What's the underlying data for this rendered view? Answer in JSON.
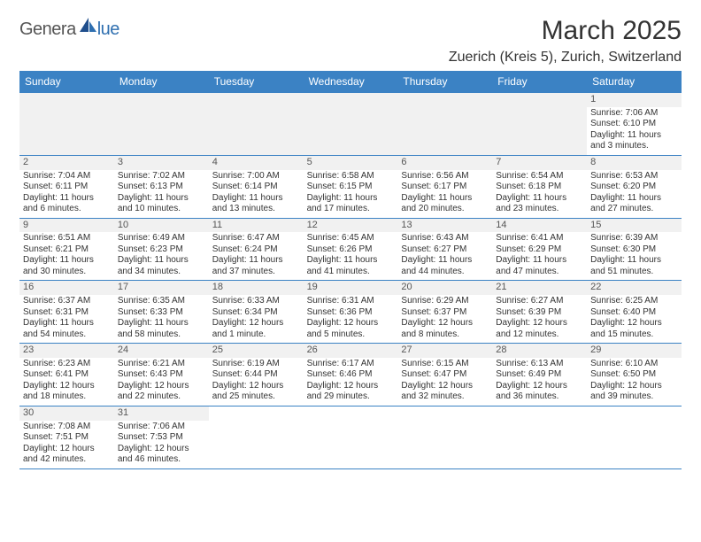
{
  "logo": {
    "text1": "Genera",
    "text2": "lue"
  },
  "header": {
    "title": "March 2025",
    "location": "Zuerich (Kreis 5), Zurich, Switzerland"
  },
  "calendar": {
    "headers": [
      "Sunday",
      "Monday",
      "Tuesday",
      "Wednesday",
      "Thursday",
      "Friday",
      "Saturday"
    ],
    "colors": {
      "header_bg": "#3b82c4",
      "header_text": "#ffffff",
      "border": "#3b82c4",
      "empty_bg": "#f1f1f1",
      "daynum_bg": "#f1f1f1",
      "text": "#333333"
    },
    "rows": [
      [
        {
          "empty": true
        },
        {
          "empty": true
        },
        {
          "empty": true
        },
        {
          "empty": true
        },
        {
          "empty": true
        },
        {
          "empty": true
        },
        {
          "day": "1",
          "sunrise": "Sunrise: 7:06 AM",
          "sunset": "Sunset: 6:10 PM",
          "daylight1": "Daylight: 11 hours",
          "daylight2": "and 3 minutes."
        }
      ],
      [
        {
          "day": "2",
          "sunrise": "Sunrise: 7:04 AM",
          "sunset": "Sunset: 6:11 PM",
          "daylight1": "Daylight: 11 hours",
          "daylight2": "and 6 minutes."
        },
        {
          "day": "3",
          "sunrise": "Sunrise: 7:02 AM",
          "sunset": "Sunset: 6:13 PM",
          "daylight1": "Daylight: 11 hours",
          "daylight2": "and 10 minutes."
        },
        {
          "day": "4",
          "sunrise": "Sunrise: 7:00 AM",
          "sunset": "Sunset: 6:14 PM",
          "daylight1": "Daylight: 11 hours",
          "daylight2": "and 13 minutes."
        },
        {
          "day": "5",
          "sunrise": "Sunrise: 6:58 AM",
          "sunset": "Sunset: 6:15 PM",
          "daylight1": "Daylight: 11 hours",
          "daylight2": "and 17 minutes."
        },
        {
          "day": "6",
          "sunrise": "Sunrise: 6:56 AM",
          "sunset": "Sunset: 6:17 PM",
          "daylight1": "Daylight: 11 hours",
          "daylight2": "and 20 minutes."
        },
        {
          "day": "7",
          "sunrise": "Sunrise: 6:54 AM",
          "sunset": "Sunset: 6:18 PM",
          "daylight1": "Daylight: 11 hours",
          "daylight2": "and 23 minutes."
        },
        {
          "day": "8",
          "sunrise": "Sunrise: 6:53 AM",
          "sunset": "Sunset: 6:20 PM",
          "daylight1": "Daylight: 11 hours",
          "daylight2": "and 27 minutes."
        }
      ],
      [
        {
          "day": "9",
          "sunrise": "Sunrise: 6:51 AM",
          "sunset": "Sunset: 6:21 PM",
          "daylight1": "Daylight: 11 hours",
          "daylight2": "and 30 minutes."
        },
        {
          "day": "10",
          "sunrise": "Sunrise: 6:49 AM",
          "sunset": "Sunset: 6:23 PM",
          "daylight1": "Daylight: 11 hours",
          "daylight2": "and 34 minutes."
        },
        {
          "day": "11",
          "sunrise": "Sunrise: 6:47 AM",
          "sunset": "Sunset: 6:24 PM",
          "daylight1": "Daylight: 11 hours",
          "daylight2": "and 37 minutes."
        },
        {
          "day": "12",
          "sunrise": "Sunrise: 6:45 AM",
          "sunset": "Sunset: 6:26 PM",
          "daylight1": "Daylight: 11 hours",
          "daylight2": "and 41 minutes."
        },
        {
          "day": "13",
          "sunrise": "Sunrise: 6:43 AM",
          "sunset": "Sunset: 6:27 PM",
          "daylight1": "Daylight: 11 hours",
          "daylight2": "and 44 minutes."
        },
        {
          "day": "14",
          "sunrise": "Sunrise: 6:41 AM",
          "sunset": "Sunset: 6:29 PM",
          "daylight1": "Daylight: 11 hours",
          "daylight2": "and 47 minutes."
        },
        {
          "day": "15",
          "sunrise": "Sunrise: 6:39 AM",
          "sunset": "Sunset: 6:30 PM",
          "daylight1": "Daylight: 11 hours",
          "daylight2": "and 51 minutes."
        }
      ],
      [
        {
          "day": "16",
          "sunrise": "Sunrise: 6:37 AM",
          "sunset": "Sunset: 6:31 PM",
          "daylight1": "Daylight: 11 hours",
          "daylight2": "and 54 minutes."
        },
        {
          "day": "17",
          "sunrise": "Sunrise: 6:35 AM",
          "sunset": "Sunset: 6:33 PM",
          "daylight1": "Daylight: 11 hours",
          "daylight2": "and 58 minutes."
        },
        {
          "day": "18",
          "sunrise": "Sunrise: 6:33 AM",
          "sunset": "Sunset: 6:34 PM",
          "daylight1": "Daylight: 12 hours",
          "daylight2": "and 1 minute."
        },
        {
          "day": "19",
          "sunrise": "Sunrise: 6:31 AM",
          "sunset": "Sunset: 6:36 PM",
          "daylight1": "Daylight: 12 hours",
          "daylight2": "and 5 minutes."
        },
        {
          "day": "20",
          "sunrise": "Sunrise: 6:29 AM",
          "sunset": "Sunset: 6:37 PM",
          "daylight1": "Daylight: 12 hours",
          "daylight2": "and 8 minutes."
        },
        {
          "day": "21",
          "sunrise": "Sunrise: 6:27 AM",
          "sunset": "Sunset: 6:39 PM",
          "daylight1": "Daylight: 12 hours",
          "daylight2": "and 12 minutes."
        },
        {
          "day": "22",
          "sunrise": "Sunrise: 6:25 AM",
          "sunset": "Sunset: 6:40 PM",
          "daylight1": "Daylight: 12 hours",
          "daylight2": "and 15 minutes."
        }
      ],
      [
        {
          "day": "23",
          "sunrise": "Sunrise: 6:23 AM",
          "sunset": "Sunset: 6:41 PM",
          "daylight1": "Daylight: 12 hours",
          "daylight2": "and 18 minutes."
        },
        {
          "day": "24",
          "sunrise": "Sunrise: 6:21 AM",
          "sunset": "Sunset: 6:43 PM",
          "daylight1": "Daylight: 12 hours",
          "daylight2": "and 22 minutes."
        },
        {
          "day": "25",
          "sunrise": "Sunrise: 6:19 AM",
          "sunset": "Sunset: 6:44 PM",
          "daylight1": "Daylight: 12 hours",
          "daylight2": "and 25 minutes."
        },
        {
          "day": "26",
          "sunrise": "Sunrise: 6:17 AM",
          "sunset": "Sunset: 6:46 PM",
          "daylight1": "Daylight: 12 hours",
          "daylight2": "and 29 minutes."
        },
        {
          "day": "27",
          "sunrise": "Sunrise: 6:15 AM",
          "sunset": "Sunset: 6:47 PM",
          "daylight1": "Daylight: 12 hours",
          "daylight2": "and 32 minutes."
        },
        {
          "day": "28",
          "sunrise": "Sunrise: 6:13 AM",
          "sunset": "Sunset: 6:49 PM",
          "daylight1": "Daylight: 12 hours",
          "daylight2": "and 36 minutes."
        },
        {
          "day": "29",
          "sunrise": "Sunrise: 6:10 AM",
          "sunset": "Sunset: 6:50 PM",
          "daylight1": "Daylight: 12 hours",
          "daylight2": "and 39 minutes."
        }
      ],
      [
        {
          "day": "30",
          "sunrise": "Sunrise: 7:08 AM",
          "sunset": "Sunset: 7:51 PM",
          "daylight1": "Daylight: 12 hours",
          "daylight2": "and 42 minutes."
        },
        {
          "day": "31",
          "sunrise": "Sunrise: 7:06 AM",
          "sunset": "Sunset: 7:53 PM",
          "daylight1": "Daylight: 12 hours",
          "daylight2": "and 46 minutes."
        },
        {
          "empty": true,
          "blank": true
        },
        {
          "empty": true,
          "blank": true
        },
        {
          "empty": true,
          "blank": true
        },
        {
          "empty": true,
          "blank": true
        },
        {
          "empty": true,
          "blank": true
        }
      ]
    ]
  }
}
